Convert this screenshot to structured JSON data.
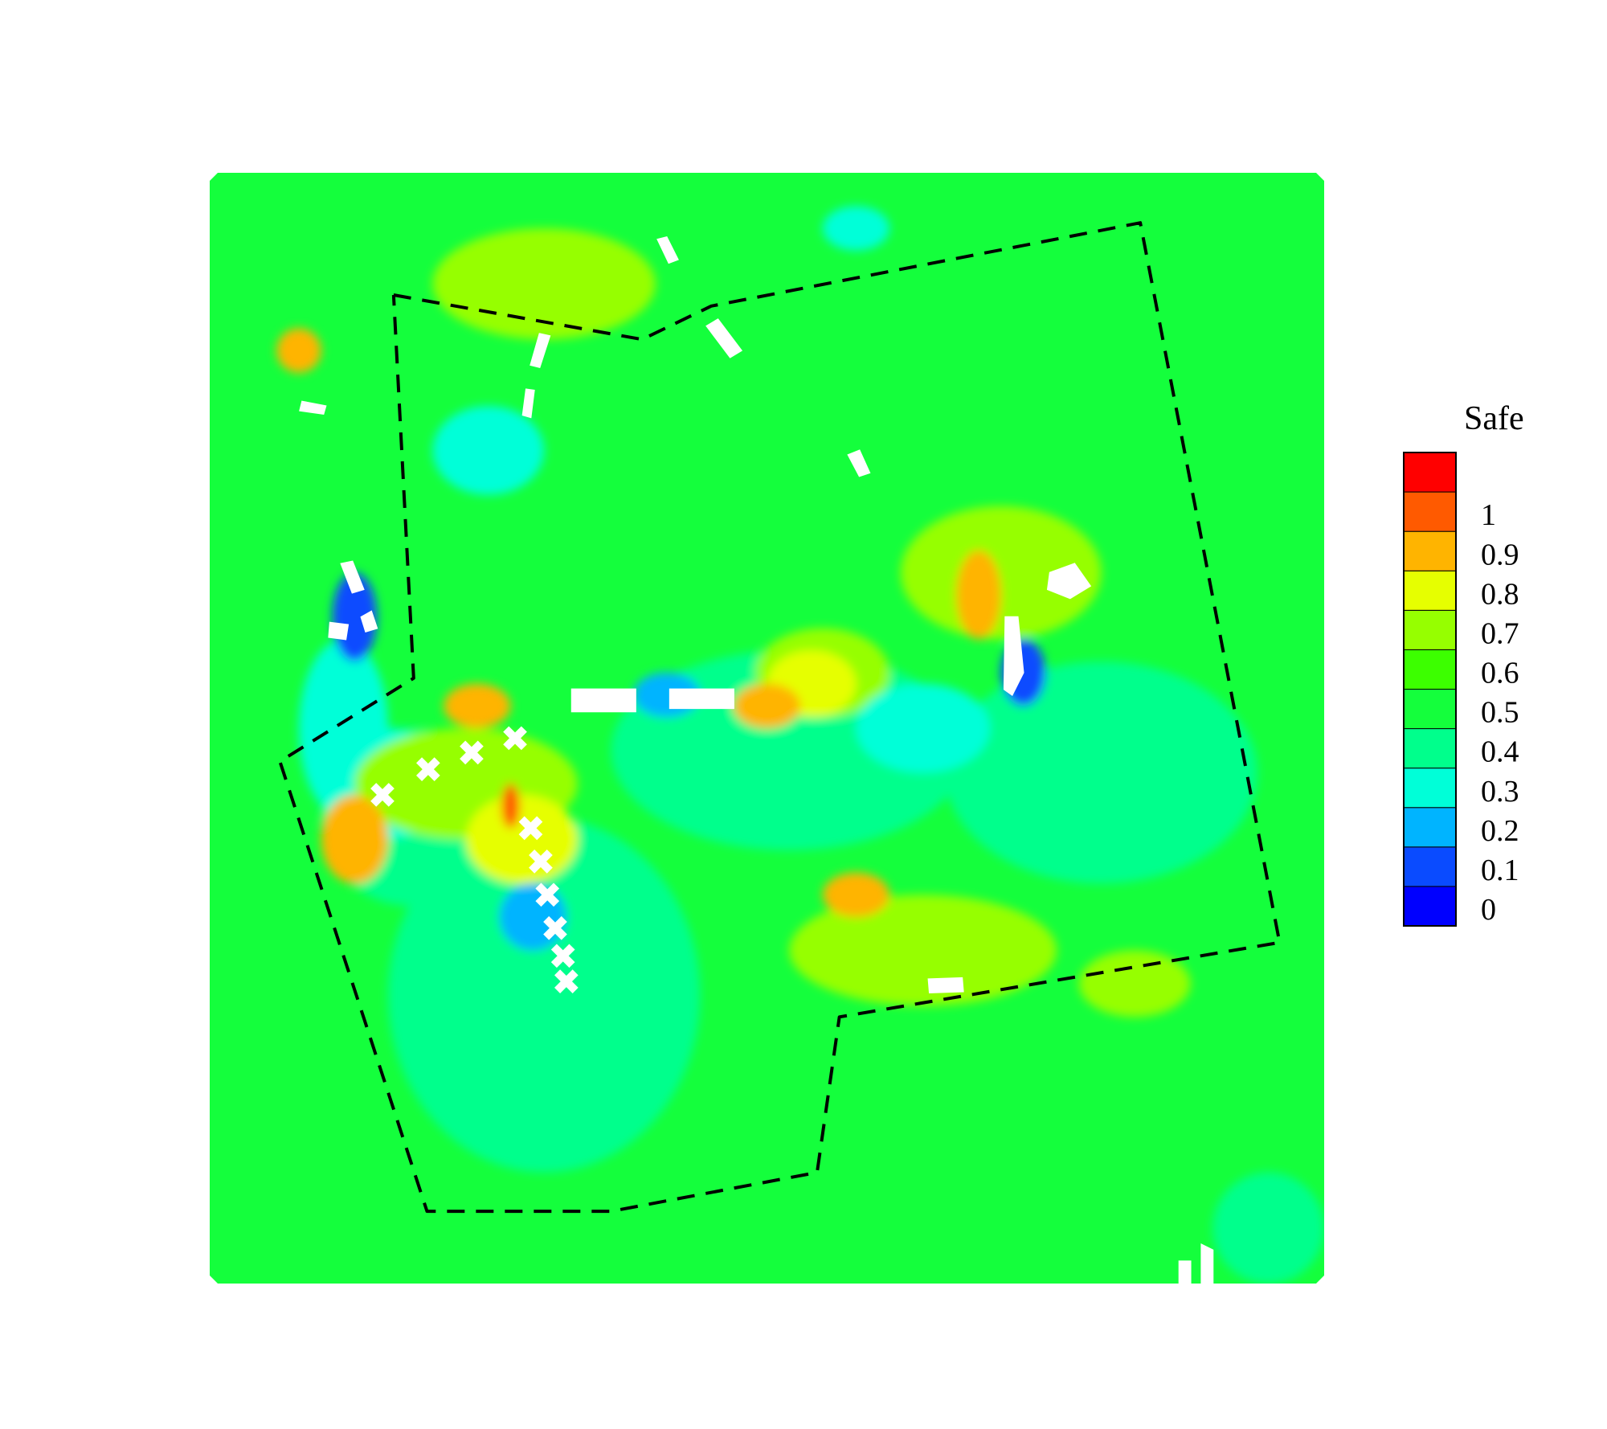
{
  "chart_data": {
    "type": "heatmap",
    "title": "",
    "xlabel": "",
    "ylabel": "",
    "colorbar": {
      "title": "Safe",
      "min": 0,
      "max": 1,
      "levels": [
        {
          "label": "0",
          "value": 0.0,
          "color": "#0000ff"
        },
        {
          "label": "0.1",
          "value": 0.1,
          "color": "#0a4bff"
        },
        {
          "label": "0.2",
          "value": 0.2,
          "color": "#00b4ff"
        },
        {
          "label": "0.3",
          "value": 0.3,
          "color": "#00ffd8"
        },
        {
          "label": "0.4",
          "value": 0.4,
          "color": "#00ff8c"
        },
        {
          "label": "0.5",
          "value": 0.5,
          "color": "#14ff3c"
        },
        {
          "label": "0.6",
          "value": 0.6,
          "color": "#3cff00"
        },
        {
          "label": "0.7",
          "value": 0.7,
          "color": "#96ff00"
        },
        {
          "label": "0.8",
          "value": 0.8,
          "color": "#e6ff00"
        },
        {
          "label": "0.9",
          "value": 0.9,
          "color": "#ffb400"
        },
        {
          "label": "1",
          "value": 1.0,
          "color": "#ff5a00"
        },
        {
          "label": "",
          "value": 1.05,
          "color": "#ff0000"
        }
      ]
    },
    "background_value": 0.58,
    "regions": [
      {
        "value": 0.4,
        "cx": 0.3,
        "cy": 0.74,
        "rx": 0.14,
        "ry": 0.16
      },
      {
        "value": 0.4,
        "cx": 0.52,
        "cy": 0.52,
        "rx": 0.16,
        "ry": 0.09
      },
      {
        "value": 0.4,
        "cx": 0.8,
        "cy": 0.54,
        "rx": 0.14,
        "ry": 0.1
      },
      {
        "value": 0.4,
        "cx": 0.18,
        "cy": 0.58,
        "rx": 0.08,
        "ry": 0.08
      },
      {
        "value": 0.35,
        "cx": 0.25,
        "cy": 0.25,
        "rx": 0.05,
        "ry": 0.04
      },
      {
        "value": 0.4,
        "cx": 0.95,
        "cy": 0.95,
        "rx": 0.05,
        "ry": 0.05
      },
      {
        "value": 0.3,
        "cx": 0.12,
        "cy": 0.5,
        "rx": 0.04,
        "ry": 0.08
      },
      {
        "value": 0.32,
        "cx": 0.16,
        "cy": 0.55,
        "rx": 0.05,
        "ry": 0.05
      },
      {
        "value": 0.15,
        "cx": 0.13,
        "cy": 0.4,
        "rx": 0.02,
        "ry": 0.04
      },
      {
        "value": 0.2,
        "cx": 0.41,
        "cy": 0.47,
        "rx": 0.03,
        "ry": 0.02
      },
      {
        "value": 0.2,
        "cx": 0.29,
        "cy": 0.67,
        "rx": 0.03,
        "ry": 0.03
      },
      {
        "value": 0.15,
        "cx": 0.73,
        "cy": 0.45,
        "rx": 0.02,
        "ry": 0.03
      },
      {
        "value": 0.75,
        "cx": 0.23,
        "cy": 0.55,
        "rx": 0.1,
        "ry": 0.05
      },
      {
        "value": 0.75,
        "cx": 0.71,
        "cy": 0.36,
        "rx": 0.09,
        "ry": 0.06
      },
      {
        "value": 0.75,
        "cx": 0.55,
        "cy": 0.45,
        "rx": 0.06,
        "ry": 0.04
      },
      {
        "value": 0.75,
        "cx": 0.64,
        "cy": 0.7,
        "rx": 0.12,
        "ry": 0.05
      },
      {
        "value": 0.72,
        "cx": 0.3,
        "cy": 0.1,
        "rx": 0.1,
        "ry": 0.05
      },
      {
        "value": 0.72,
        "cx": 0.83,
        "cy": 0.73,
        "rx": 0.05,
        "ry": 0.03
      },
      {
        "value": 0.85,
        "cx": 0.28,
        "cy": 0.6,
        "rx": 0.05,
        "ry": 0.04
      },
      {
        "value": 0.8,
        "cx": 0.54,
        "cy": 0.46,
        "rx": 0.04,
        "ry": 0.03
      },
      {
        "value": 0.9,
        "cx": 0.13,
        "cy": 0.6,
        "rx": 0.03,
        "ry": 0.04
      },
      {
        "value": 0.9,
        "cx": 0.24,
        "cy": 0.48,
        "rx": 0.03,
        "ry": 0.02
      },
      {
        "value": 0.9,
        "cx": 0.58,
        "cy": 0.65,
        "rx": 0.03,
        "ry": 0.02
      },
      {
        "value": 0.9,
        "cx": 0.69,
        "cy": 0.38,
        "rx": 0.02,
        "ry": 0.04
      },
      {
        "value": 0.9,
        "cx": 0.5,
        "cy": 0.48,
        "rx": 0.03,
        "ry": 0.02
      },
      {
        "value": 0.9,
        "cx": 0.08,
        "cy": 0.16,
        "rx": 0.02,
        "ry": 0.02
      },
      {
        "value": 1.02,
        "cx": 0.27,
        "cy": 0.57,
        "rx": 0.008,
        "ry": 0.02
      },
      {
        "value": 0.35,
        "cx": 0.58,
        "cy": 0.05,
        "rx": 0.03,
        "ry": 0.02
      },
      {
        "value": 0.35,
        "cx": 0.64,
        "cy": 0.5,
        "rx": 0.06,
        "ry": 0.04
      }
    ],
    "buildings": [
      {
        "points": [
          [
            0.296,
            0.145
          ],
          [
            0.305,
            0.147
          ],
          [
            0.296,
            0.175
          ],
          [
            0.288,
            0.173
          ]
        ]
      },
      {
        "points": [
          [
            0.284,
            0.195
          ],
          [
            0.291,
            0.196
          ],
          [
            0.288,
            0.22
          ],
          [
            0.281,
            0.218
          ]
        ]
      },
      {
        "points": [
          [
            0.446,
            0.138
          ],
          [
            0.456,
            0.132
          ],
          [
            0.477,
            0.16
          ],
          [
            0.467,
            0.166
          ]
        ]
      },
      {
        "points": [
          [
            0.402,
            0.06
          ],
          [
            0.41,
            0.058
          ],
          [
            0.42,
            0.078
          ],
          [
            0.412,
            0.081
          ]
        ]
      },
      {
        "points": [
          [
            0.573,
            0.254
          ],
          [
            0.583,
            0.25
          ],
          [
            0.592,
            0.27
          ],
          [
            0.583,
            0.273
          ]
        ]
      },
      {
        "points": [
          [
            0.083,
            0.206
          ],
          [
            0.104,
            0.21
          ],
          [
            0.102,
            0.217
          ],
          [
            0.081,
            0.214
          ]
        ]
      },
      {
        "points": [
          [
            0.754,
            0.36
          ],
          [
            0.776,
            0.352
          ],
          [
            0.79,
            0.372
          ],
          [
            0.772,
            0.383
          ],
          [
            0.752,
            0.375
          ]
        ]
      },
      {
        "points": [
          [
            0.714,
            0.4
          ],
          [
            0.725,
            0.4
          ],
          [
            0.73,
            0.45
          ],
          [
            0.72,
            0.47
          ],
          [
            0.713,
            0.465
          ]
        ]
      },
      {
        "points": [
          [
            0.645,
            0.726
          ],
          [
            0.675,
            0.725
          ],
          [
            0.676,
            0.737
          ],
          [
            0.646,
            0.738
          ]
        ]
      },
      {
        "points": [
          [
            0.325,
            0.465
          ],
          [
            0.382,
            0.465
          ],
          [
            0.382,
            0.485
          ],
          [
            0.325,
            0.485
          ]
        ]
      },
      {
        "points": [
          [
            0.413,
            0.465
          ],
          [
            0.47,
            0.465
          ],
          [
            0.47,
            0.482
          ],
          [
            0.413,
            0.482
          ]
        ]
      },
      {
        "points": [
          [
            0.118,
            0.352
          ],
          [
            0.128,
            0.35
          ],
          [
            0.138,
            0.375
          ],
          [
            0.128,
            0.378
          ]
        ]
      },
      {
        "points": [
          [
            0.108,
            0.405
          ],
          [
            0.124,
            0.407
          ],
          [
            0.122,
            0.42
          ],
          [
            0.107,
            0.418
          ]
        ]
      },
      {
        "points": [
          [
            0.145,
            0.395
          ],
          [
            0.15,
            0.41
          ],
          [
            0.14,
            0.413
          ],
          [
            0.136,
            0.4
          ]
        ]
      },
      {
        "points": [
          [
            0.89,
            0.965
          ],
          [
            0.9,
            0.97
          ],
          [
            0.9,
            1.0
          ],
          [
            0.89,
            1.0
          ]
        ]
      },
      {
        "points": [
          [
            0.87,
            0.98
          ],
          [
            0.88,
            0.98
          ],
          [
            0.88,
            1.0
          ],
          [
            0.87,
            1.0
          ]
        ]
      }
    ],
    "cross_buildings": [
      {
        "x": 0.155,
        "y": 0.56
      },
      {
        "x": 0.196,
        "y": 0.537
      },
      {
        "x": 0.235,
        "y": 0.522
      },
      {
        "x": 0.274,
        "y": 0.509
      },
      {
        "x": 0.288,
        "y": 0.59
      },
      {
        "x": 0.297,
        "y": 0.62
      },
      {
        "x": 0.303,
        "y": 0.65
      },
      {
        "x": 0.31,
        "y": 0.68
      },
      {
        "x": 0.317,
        "y": 0.705
      },
      {
        "x": 0.32,
        "y": 0.728
      }
    ],
    "outline": [
      [
        0.165,
        0.11
      ],
      [
        0.388,
        0.15
      ],
      [
        0.45,
        0.12
      ],
      [
        0.835,
        0.045
      ],
      [
        0.96,
        0.693
      ],
      [
        0.565,
        0.76
      ],
      [
        0.545,
        0.9
      ],
      [
        0.36,
        0.935
      ],
      [
        0.195,
        0.935
      ],
      [
        0.063,
        0.53
      ],
      [
        0.183,
        0.455
      ],
      [
        0.165,
        0.11
      ]
    ]
  }
}
